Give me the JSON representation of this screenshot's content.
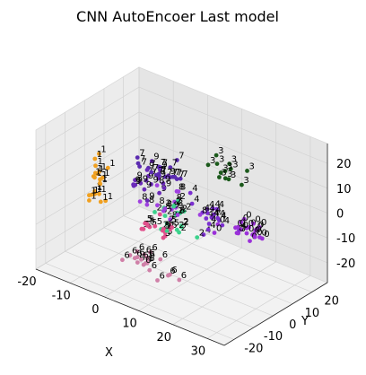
{
  "chart_data": {
    "type": "scatter",
    "projection": "3d",
    "title": "CNN AutoEncoer Last model",
    "xlabel": "X",
    "ylabel": "Y",
    "zlabel": "",
    "xlim": [
      -20,
      35
    ],
    "ylim": [
      -25,
      28
    ],
    "zlim": [
      -28,
      28
    ],
    "x_ticks": [
      "-20",
      "-10",
      "0",
      "10",
      "20",
      "30"
    ],
    "y_ticks": [
      "-20",
      "-10",
      "0",
      "10",
      "20"
    ],
    "z_ticks": [
      "-20",
      "-10",
      "0",
      "10",
      "20"
    ],
    "grid": true,
    "legend": "none",
    "point_labels_shown": true,
    "clusters": [
      {
        "label": "0",
        "color": "#9b30d9",
        "center": [
          22,
          8,
          -5
        ],
        "spread": [
          6,
          7,
          4
        ],
        "count": 22
      },
      {
        "label": "1",
        "color": "#f0a020",
        "center": [
          -15,
          -2,
          0
        ],
        "spread": [
          2,
          4,
          8
        ],
        "count": 22
      },
      {
        "label": "2",
        "color": "#3cd28c",
        "center": [
          6,
          -2,
          -4
        ],
        "spread": [
          7,
          6,
          5
        ],
        "count": 18
      },
      {
        "label": "3",
        "color": "#1c5a1c",
        "center": [
          12,
          18,
          10
        ],
        "spread": [
          6,
          5,
          5
        ],
        "count": 12
      },
      {
        "label": "4",
        "color": "#7b2fd0",
        "center": [
          12,
          6,
          -3
        ],
        "spread": [
          7,
          6,
          5
        ],
        "count": 18
      },
      {
        "label": "5",
        "color": "#e0508c",
        "center": [
          5,
          -4,
          -8
        ],
        "spread": [
          6,
          5,
          5
        ],
        "count": 16
      },
      {
        "label": "6",
        "color": "#d080a8",
        "center": [
          4,
          -10,
          -20
        ],
        "spread": [
          7,
          5,
          3
        ],
        "count": 20
      },
      {
        "label": "7",
        "color": "#5b2bb0",
        "center": [
          0,
          5,
          8
        ],
        "spread": [
          6,
          5,
          5
        ],
        "count": 18
      },
      {
        "label": "8",
        "color": "#a040e0",
        "center": [
          4,
          0,
          0
        ],
        "spread": [
          8,
          6,
          6
        ],
        "count": 14
      },
      {
        "label": "9",
        "color": "#6a2ab8",
        "center": [
          -2,
          2,
          4
        ],
        "spread": [
          6,
          5,
          6
        ],
        "count": 18
      }
    ],
    "points": {
      "count": 178
    }
  }
}
